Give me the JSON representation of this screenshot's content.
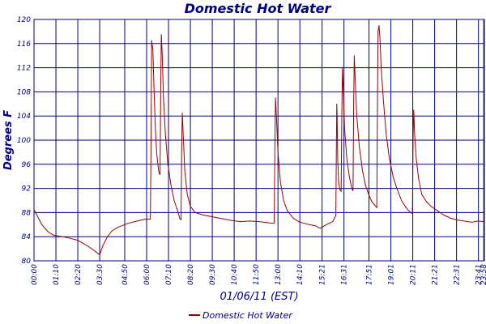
{
  "chart_data": {
    "type": "line",
    "title": "Domestic Hot Water",
    "xlabel": "01/06/11 (EST)",
    "ylabel": "Degrees F",
    "ylim": [
      80,
      120
    ],
    "yticks": [
      80,
      84,
      88,
      92,
      96,
      100,
      104,
      108,
      112,
      116,
      120
    ],
    "xlim": [
      0,
      1440
    ],
    "xticks": [
      {
        "label": "00:00",
        "minute": 0
      },
      {
        "label": "01:10",
        "minute": 70
      },
      {
        "label": "02:20",
        "minute": 140
      },
      {
        "label": "03:30",
        "minute": 210
      },
      {
        "label": "04:50",
        "minute": 290
      },
      {
        "label": "06:00",
        "minute": 360
      },
      {
        "label": "07:10",
        "minute": 430
      },
      {
        "label": "08:20",
        "minute": 500
      },
      {
        "label": "09:30",
        "minute": 570
      },
      {
        "label": "10:40",
        "minute": 640
      },
      {
        "label": "11:50",
        "minute": 710
      },
      {
        "label": "13:00",
        "minute": 780
      },
      {
        "label": "14:10",
        "minute": 850
      },
      {
        "label": "15:21",
        "minute": 921
      },
      {
        "label": "16:31",
        "minute": 991
      },
      {
        "label": "17:51",
        "minute": 1071
      },
      {
        "label": "19:01",
        "minute": 1141
      },
      {
        "label": "20:11",
        "minute": 1211
      },
      {
        "label": "21:21",
        "minute": 1281
      },
      {
        "label": "22:31",
        "minute": 1351
      },
      {
        "label": "23:41",
        "minute": 1421
      },
      {
        "label": "23:58",
        "minute": 1438
      }
    ],
    "grid": true,
    "legend_position": "bottom",
    "series": [
      {
        "name": "Domestic Hot Water",
        "color": "#990000",
        "points": [
          [
            0,
            88.5
          ],
          [
            10,
            87.5
          ],
          [
            25,
            86.0
          ],
          [
            45,
            84.8
          ],
          [
            60,
            84.3
          ],
          [
            80,
            84.1
          ],
          [
            110,
            83.8
          ],
          [
            140,
            83.4
          ],
          [
            170,
            82.5
          ],
          [
            190,
            81.8
          ],
          [
            205,
            81.2
          ],
          [
            210,
            81.0
          ],
          [
            220,
            82.5
          ],
          [
            235,
            84.0
          ],
          [
            250,
            85.0
          ],
          [
            270,
            85.6
          ],
          [
            300,
            86.2
          ],
          [
            330,
            86.6
          ],
          [
            355,
            86.9
          ],
          [
            372,
            86.9
          ],
          [
            374,
            98.0
          ],
          [
            376,
            116.5
          ],
          [
            380,
            115.0
          ],
          [
            384,
            108.0
          ],
          [
            388,
            102.0
          ],
          [
            392,
            98.0
          ],
          [
            396,
            96.0
          ],
          [
            400,
            94.5
          ],
          [
            403,
            94.3
          ],
          [
            405,
            108.0
          ],
          [
            407,
            117.5
          ],
          [
            410,
            114.0
          ],
          [
            414,
            107.0
          ],
          [
            420,
            101.0
          ],
          [
            428,
            96.0
          ],
          [
            438,
            92.5
          ],
          [
            448,
            90.0
          ],
          [
            458,
            88.5
          ],
          [
            466,
            87.0
          ],
          [
            470,
            86.8
          ],
          [
            472,
            98.0
          ],
          [
            474,
            104.5
          ],
          [
            477,
            101.0
          ],
          [
            482,
            95.0
          ],
          [
            490,
            91.0
          ],
          [
            500,
            89.0
          ],
          [
            515,
            88.0
          ],
          [
            540,
            87.6
          ],
          [
            570,
            87.3
          ],
          [
            600,
            87.0
          ],
          [
            630,
            86.7
          ],
          [
            660,
            86.5
          ],
          [
            690,
            86.6
          ],
          [
            720,
            86.5
          ],
          [
            750,
            86.3
          ],
          [
            768,
            86.2
          ],
          [
            770,
            98.0
          ],
          [
            772,
            107.0
          ],
          [
            775,
            104.0
          ],
          [
            780,
            98.0
          ],
          [
            788,
            93.0
          ],
          [
            798,
            90.0
          ],
          [
            810,
            88.3
          ],
          [
            830,
            87.0
          ],
          [
            850,
            86.4
          ],
          [
            880,
            86.0
          ],
          [
            900,
            85.8
          ],
          [
            915,
            85.4
          ],
          [
            935,
            86.0
          ],
          [
            955,
            86.5
          ],
          [
            965,
            87.5
          ],
          [
            967,
            100.0
          ],
          [
            968,
            106.0
          ],
          [
            969,
            104.5
          ],
          [
            971,
            97.0
          ],
          [
            974,
            93.0
          ],
          [
            978,
            91.8
          ],
          [
            982,
            91.5
          ],
          [
            984,
            103.0
          ],
          [
            986,
            112.0
          ],
          [
            989,
            108.0
          ],
          [
            993,
            102.0
          ],
          [
            1000,
            97.0
          ],
          [
            1008,
            94.0
          ],
          [
            1016,
            92.0
          ],
          [
            1020,
            91.6
          ],
          [
            1022,
            106.0
          ],
          [
            1024,
            114.0
          ],
          [
            1027,
            110.0
          ],
          [
            1032,
            104.0
          ],
          [
            1040,
            99.0
          ],
          [
            1050,
            95.0
          ],
          [
            1060,
            92.5
          ],
          [
            1070,
            91.0
          ],
          [
            1080,
            89.8
          ],
          [
            1090,
            89.2
          ],
          [
            1096,
            88.8
          ],
          [
            1098,
            105.0
          ],
          [
            1100,
            118.0
          ],
          [
            1103,
            119.0
          ],
          [
            1106,
            117.0
          ],
          [
            1110,
            112.0
          ],
          [
            1118,
            106.0
          ],
          [
            1126,
            101.0
          ],
          [
            1136,
            97.0
          ],
          [
            1148,
            94.0
          ],
          [
            1160,
            92.0
          ],
          [
            1175,
            90.0
          ],
          [
            1190,
            88.8
          ],
          [
            1200,
            88.2
          ],
          [
            1210,
            87.8
          ],
          [
            1212,
            100.0
          ],
          [
            1214,
            105.0
          ],
          [
            1217,
            101.0
          ],
          [
            1222,
            97.0
          ],
          [
            1230,
            93.5
          ],
          [
            1240,
            91.0
          ],
          [
            1255,
            89.8
          ],
          [
            1270,
            89.0
          ],
          [
            1290,
            88.3
          ],
          [
            1310,
            87.6
          ],
          [
            1330,
            87.1
          ],
          [
            1350,
            86.8
          ],
          [
            1375,
            86.6
          ],
          [
            1400,
            86.4
          ],
          [
            1420,
            86.6
          ],
          [
            1438,
            86.5
          ]
        ]
      }
    ]
  }
}
